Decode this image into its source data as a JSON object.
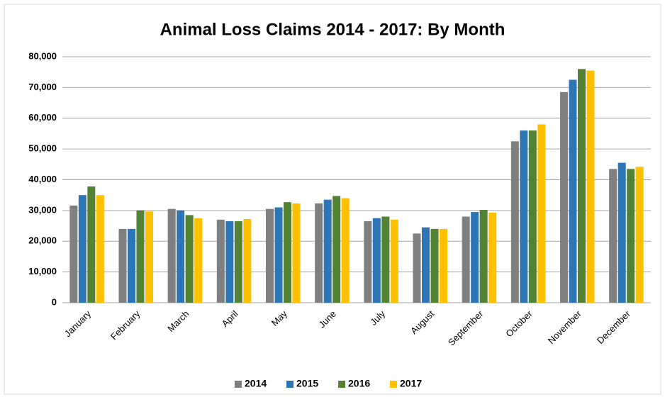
{
  "chart_data": {
    "type": "bar",
    "title": "Animal Loss Claims 2014 - 2017: By Month",
    "categories": [
      "January",
      "February",
      "March",
      "April",
      "May",
      "June",
      "July",
      "August",
      "September",
      "October",
      "November",
      "December"
    ],
    "series": [
      {
        "name": "2014",
        "color": "#808080",
        "values": [
          31600,
          24000,
          30500,
          27000,
          30500,
          32300,
          26500,
          22500,
          28000,
          52500,
          68500,
          43500
        ]
      },
      {
        "name": "2015",
        "color": "#2e75b6",
        "values": [
          35000,
          24000,
          30000,
          26500,
          31000,
          33500,
          27500,
          24500,
          29500,
          56000,
          72500,
          45500
        ]
      },
      {
        "name": "2016",
        "color": "#548235",
        "values": [
          37800,
          30000,
          28500,
          26500,
          32700,
          34700,
          28000,
          24000,
          30200,
          56000,
          76000,
          43500
        ]
      },
      {
        "name": "2017",
        "color": "#ffc000",
        "values": [
          35000,
          29700,
          27500,
          27200,
          32300,
          34000,
          27000,
          24000,
          29300,
          58000,
          75500,
          44200
        ]
      }
    ],
    "ylim": [
      0,
      80000
    ],
    "yticks": [
      0,
      {
        "value": 10000,
        "label": "10,000"
      },
      {
        "value": 20000,
        "label": "20,000"
      },
      {
        "value": 30000,
        "label": "30,000"
      },
      {
        "value": 40000,
        "label": "40,000"
      },
      {
        "value": 50000,
        "label": "50,000"
      },
      {
        "value": 60000,
        "label": "60,000"
      },
      {
        "value": 70000,
        "label": "70,000"
      },
      {
        "value": 80000,
        "label": "80,000"
      }
    ],
    "grid": true,
    "legend": "bottom"
  }
}
